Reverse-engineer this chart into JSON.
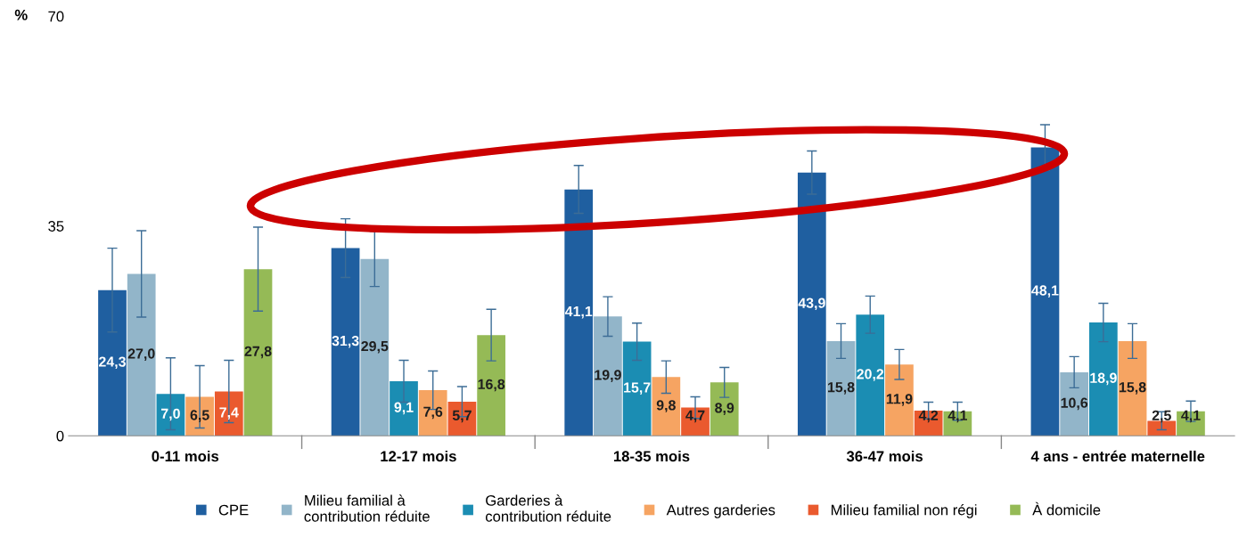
{
  "chart_data": {
    "type": "bar",
    "ylabel": "%",
    "ylim": [
      0,
      70
    ],
    "yticks": [
      0,
      35,
      70
    ],
    "grid": false,
    "legend": "bottom",
    "categories": [
      "0-11 mois",
      "12-17 mois",
      "18-35 mois",
      "36-47 mois",
      "4 ans - entrée maternelle"
    ],
    "series": [
      {
        "name": "CPE",
        "color": "#1f5fa0",
        "values": [
          24.3,
          31.3,
          41.1,
          43.9,
          48.1
        ],
        "errors": [
          7.0,
          4.9,
          4.0,
          3.6,
          3.8
        ],
        "value_labels": [
          "24,3",
          "31,3",
          "41,1",
          "43,9",
          "48,1"
        ]
      },
      {
        "name": "Milieu familial à\ncontribution réduite",
        "color": "#92b5c9",
        "values": [
          27.0,
          29.5,
          19.9,
          15.8,
          10.6
        ],
        "errors": [
          7.2,
          4.6,
          3.3,
          2.9,
          2.6
        ],
        "value_labels": [
          "27,0",
          "29,5",
          "19,9",
          "15,8",
          "10,6"
        ]
      },
      {
        "name": "Garderies à\ncontribution réduite",
        "color": "#1b8db3",
        "values": [
          7.0,
          9.1,
          15.7,
          20.2,
          18.9
        ],
        "errors": [
          6.0,
          3.5,
          3.1,
          3.1,
          3.2
        ],
        "value_labels": [
          "7,0",
          "9,1",
          "15,7",
          "20,2",
          "18,9"
        ]
      },
      {
        "name": "Autres garderies",
        "color": "#f6a462",
        "values": [
          6.5,
          7.6,
          9.8,
          11.9,
          15.8
        ],
        "errors": [
          5.2,
          3.2,
          2.7,
          2.5,
          2.9
        ],
        "value_labels": [
          "6,5",
          "7,6",
          "9,8",
          "11,9",
          "15,8"
        ]
      },
      {
        "name": "Milieu familial non régi",
        "color": "#ea5a2e",
        "values": [
          7.4,
          5.7,
          4.7,
          4.2,
          2.5
        ],
        "errors": [
          5.2,
          2.5,
          1.8,
          1.4,
          1.5
        ],
        "value_labels": [
          "7,4",
          "5,7",
          "4,7",
          "4,2",
          "2,5"
        ]
      },
      {
        "name": "À domicile",
        "color": "#95ba56",
        "values": [
          27.8,
          16.8,
          8.9,
          4.1,
          4.1
        ],
        "errors": [
          7.0,
          4.3,
          2.5,
          1.5,
          1.7
        ],
        "value_labels": [
          "27,8",
          "16,8",
          "8,9",
          "4,1",
          "4,1"
        ]
      }
    ]
  }
}
